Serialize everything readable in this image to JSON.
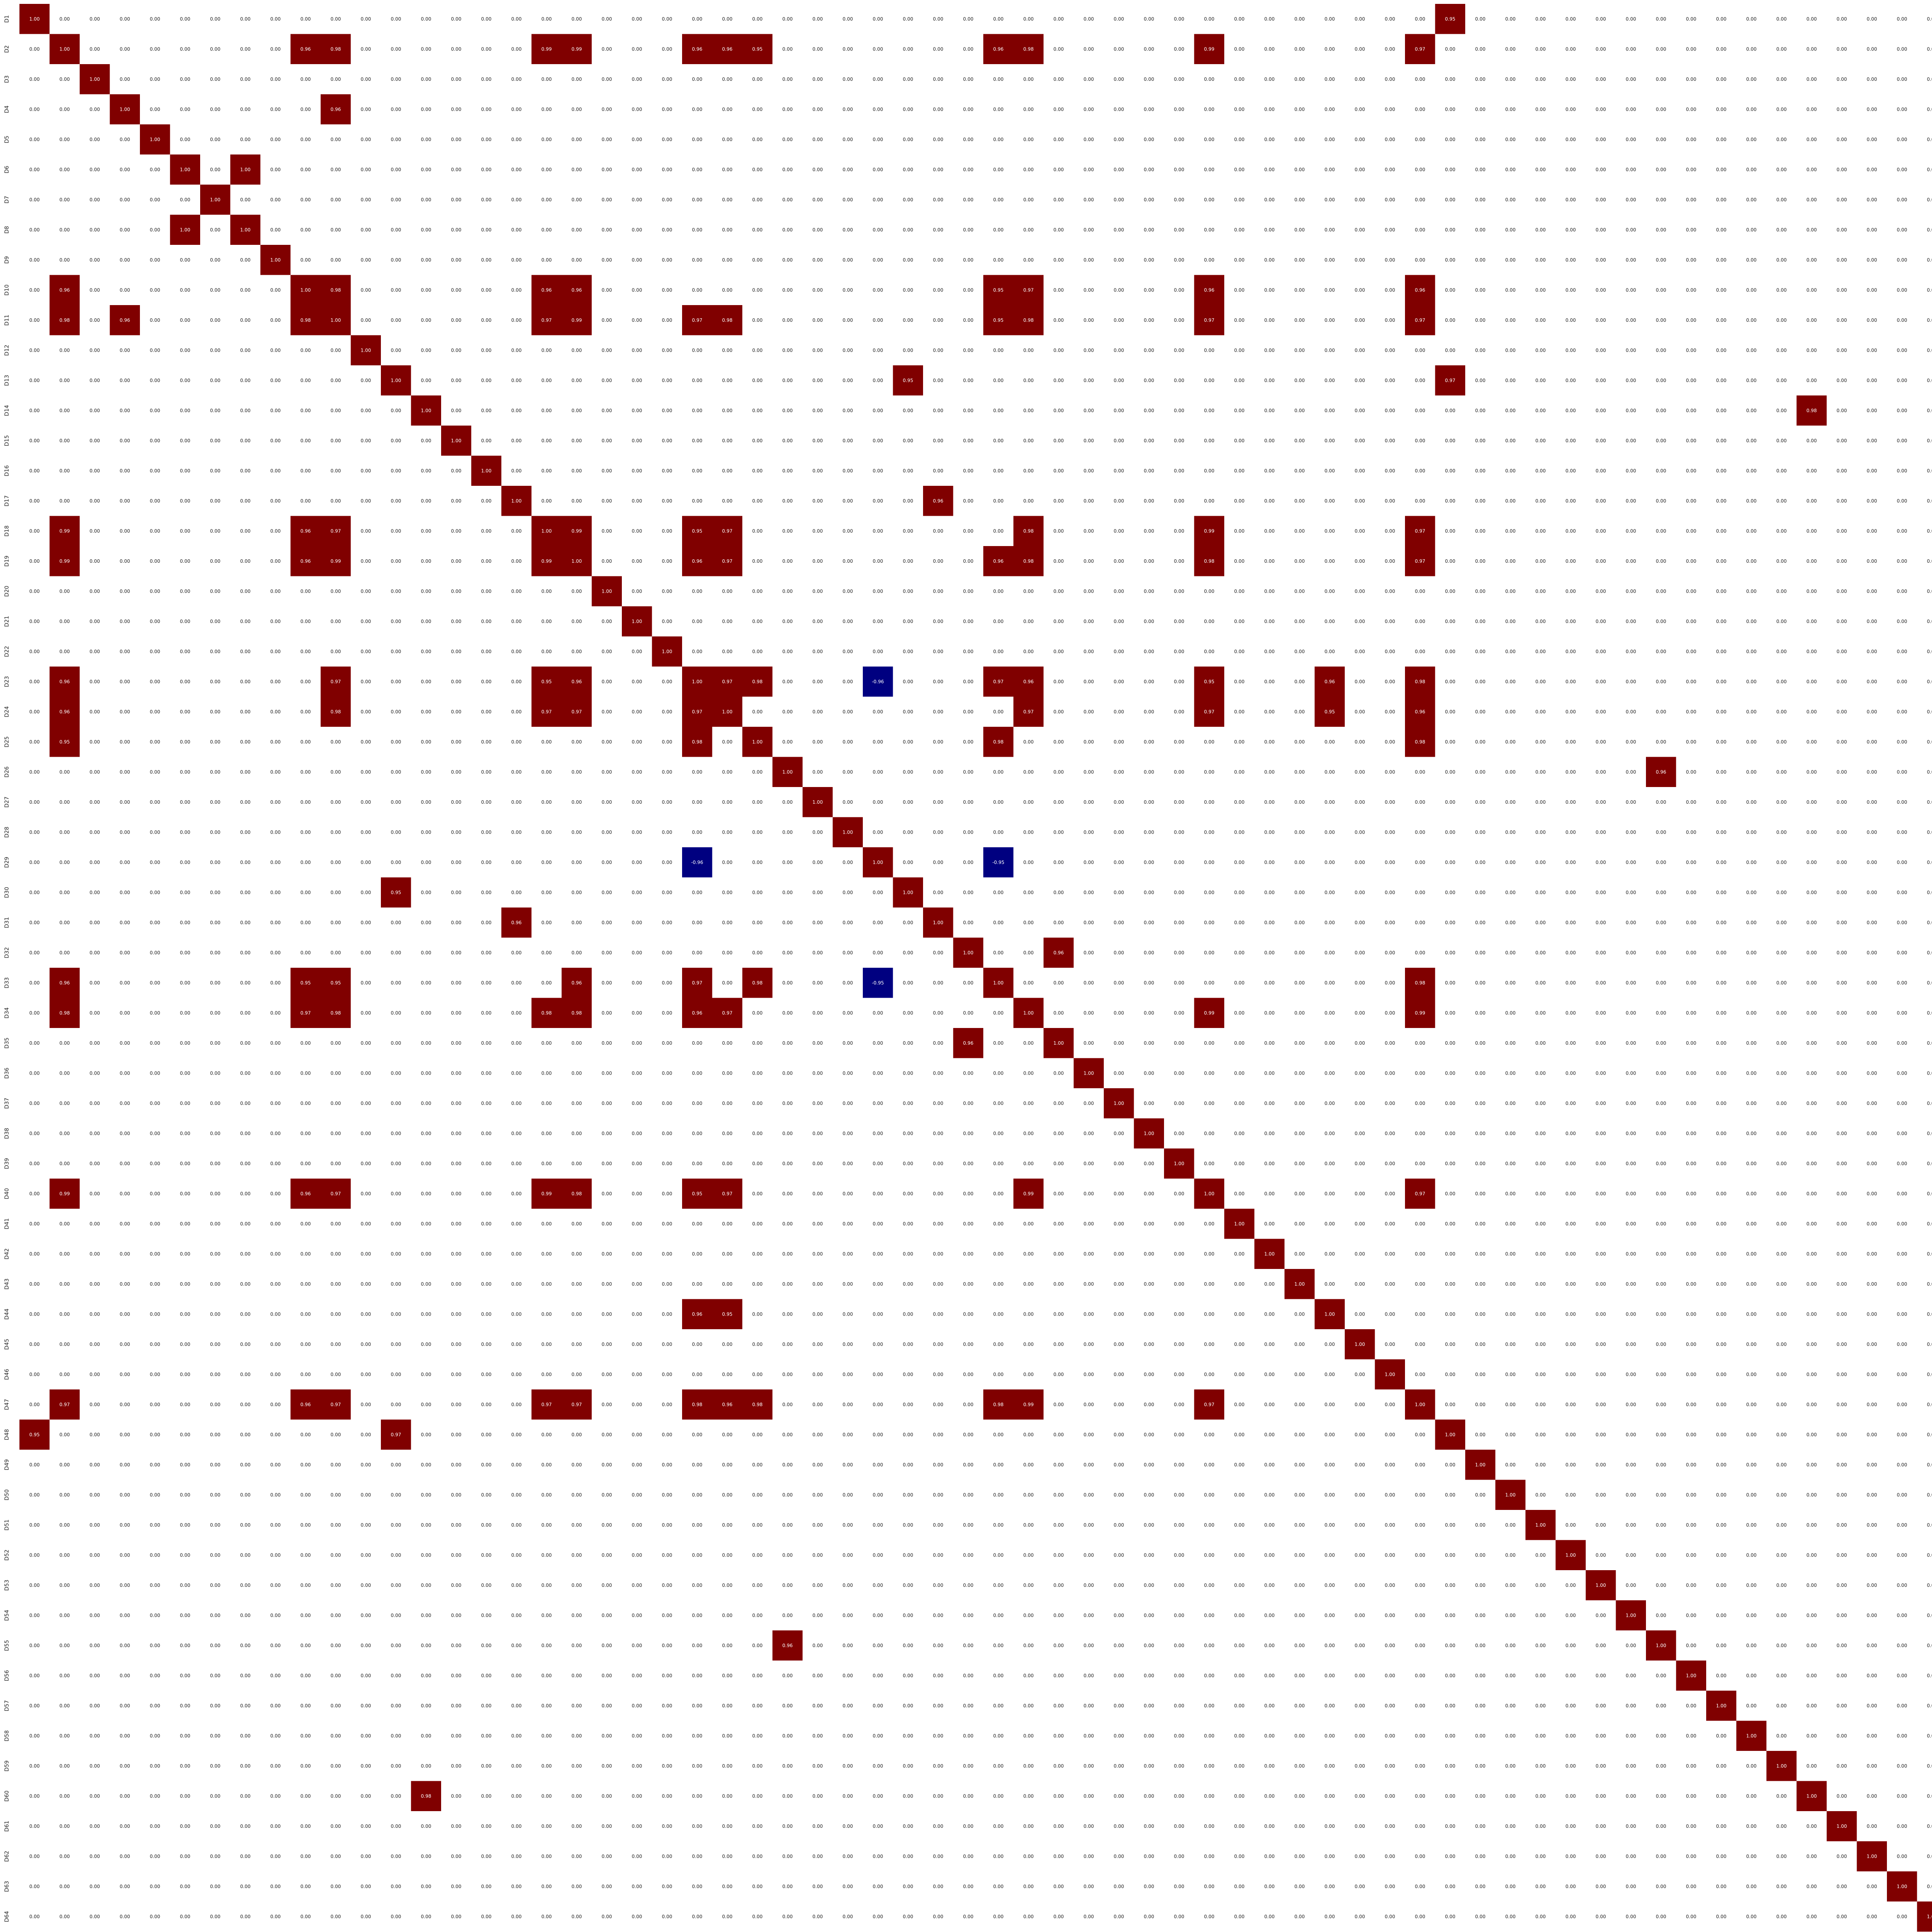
{
  "chart_data": {
    "type": "heatmap",
    "title": "",
    "xlabel": "",
    "ylabel": "",
    "labels": [
      "D1",
      "D2",
      "D3",
      "D4",
      "D5",
      "D6",
      "D7",
      "D8",
      "D9",
      "D10",
      "D11",
      "D12",
      "D13",
      "D14",
      "D15",
      "D16",
      "D17",
      "D18",
      "D19",
      "D20",
      "D21",
      "D22",
      "D23",
      "D24",
      "D25",
      "D26",
      "D27",
      "D28",
      "D29",
      "D30",
      "D31",
      "D32",
      "D33",
      "D34",
      "D35",
      "D36",
      "D37",
      "D38",
      "D39",
      "D40",
      "D41",
      "D42",
      "D43",
      "D44",
      "D45",
      "D46",
      "D47",
      "D48",
      "D49",
      "D50",
      "D51",
      "D52",
      "D53",
      "D54",
      "D55",
      "D56",
      "D57",
      "D58",
      "D59",
      "D60",
      "D61",
      "D62",
      "D63",
      "D64"
    ],
    "value_format": "0.00",
    "default_value": 0.0,
    "diagonal_value": 1.0,
    "vmin": -1.0,
    "vmax": 1.0,
    "colors": {
      "positive": "#800000",
      "negative": "#000080",
      "cell_text_dark": "#222222",
      "cell_text_light": "#ffffff",
      "background": "#ffffff"
    },
    "off_diagonal": [
      [
        "D1",
        "D48",
        0.95
      ],
      [
        "D2",
        "D10",
        0.96
      ],
      [
        "D2",
        "D11",
        0.98
      ],
      [
        "D2",
        "D18",
        0.99
      ],
      [
        "D2",
        "D19",
        0.99
      ],
      [
        "D2",
        "D23",
        0.96
      ],
      [
        "D2",
        "D24",
        0.96
      ],
      [
        "D2",
        "D25",
        0.95
      ],
      [
        "D2",
        "D33",
        0.96
      ],
      [
        "D2",
        "D34",
        0.98
      ],
      [
        "D2",
        "D40",
        0.99
      ],
      [
        "D2",
        "D47",
        0.97
      ],
      [
        "D4",
        "D11",
        0.96
      ],
      [
        "D6",
        "D8",
        1.0
      ],
      [
        "D10",
        "D11",
        0.98
      ],
      [
        "D10",
        "D18",
        0.96
      ],
      [
        "D10",
        "D19",
        0.96
      ],
      [
        "D10",
        "D33",
        0.95
      ],
      [
        "D10",
        "D34",
        0.97
      ],
      [
        "D10",
        "D40",
        0.96
      ],
      [
        "D10",
        "D47",
        0.96
      ],
      [
        "D11",
        "D18",
        0.97
      ],
      [
        "D11",
        "D19",
        0.99
      ],
      [
        "D11",
        "D23",
        0.97
      ],
      [
        "D11",
        "D24",
        0.98
      ],
      [
        "D11",
        "D33",
        0.95
      ],
      [
        "D11",
        "D34",
        0.98
      ],
      [
        "D11",
        "D40",
        0.97
      ],
      [
        "D11",
        "D47",
        0.97
      ],
      [
        "D13",
        "D30",
        0.95
      ],
      [
        "D13",
        "D48",
        0.97
      ],
      [
        "D14",
        "D60",
        0.98
      ],
      [
        "D17",
        "D31",
        0.96
      ],
      [
        "D18",
        "D19",
        0.99
      ],
      [
        "D18",
        "D23",
        0.95
      ],
      [
        "D18",
        "D24",
        0.97
      ],
      [
        "D18",
        "D34",
        0.98
      ],
      [
        "D18",
        "D40",
        0.99
      ],
      [
        "D18",
        "D47",
        0.97
      ],
      [
        "D19",
        "D23",
        0.96
      ],
      [
        "D19",
        "D24",
        0.97
      ],
      [
        "D19",
        "D33",
        0.96
      ],
      [
        "D19",
        "D34",
        0.98
      ],
      [
        "D19",
        "D40",
        0.98
      ],
      [
        "D19",
        "D47",
        0.97
      ],
      [
        "D23",
        "D24",
        0.97
      ],
      [
        "D23",
        "D25",
        0.98
      ],
      [
        "D23",
        "D29",
        -0.96
      ],
      [
        "D23",
        "D33",
        0.97
      ],
      [
        "D23",
        "D34",
        0.96
      ],
      [
        "D23",
        "D40",
        0.95
      ],
      [
        "D23",
        "D44",
        0.96
      ],
      [
        "D23",
        "D47",
        0.98
      ],
      [
        "D24",
        "D34",
        0.97
      ],
      [
        "D24",
        "D40",
        0.97
      ],
      [
        "D24",
        "D44",
        0.95
      ],
      [
        "D24",
        "D47",
        0.96
      ],
      [
        "D25",
        "D33",
        0.98
      ],
      [
        "D25",
        "D47",
        0.98
      ],
      [
        "D26",
        "D55",
        0.96
      ],
      [
        "D29",
        "D33",
        -0.95
      ],
      [
        "D32",
        "D35",
        0.96
      ],
      [
        "D33",
        "D47",
        0.98
      ],
      [
        "D34",
        "D40",
        0.99
      ],
      [
        "D34",
        "D47",
        0.99
      ],
      [
        "D40",
        "D47",
        0.97
      ]
    ]
  }
}
